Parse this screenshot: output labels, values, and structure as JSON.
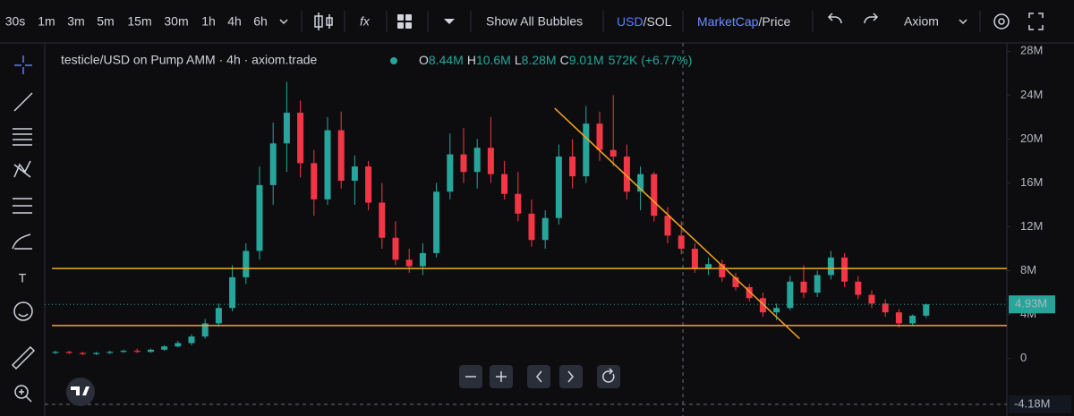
{
  "toolbar": {
    "intervals": [
      "30s",
      "1m",
      "3m",
      "5m",
      "15m",
      "30m",
      "1h",
      "4h",
      "6h"
    ],
    "active_interval": "4h",
    "bubbles": "Show All Bubbles",
    "currency": "USD",
    "currency_alt": "/SOL",
    "mode": "MarketCap",
    "mode_alt": "/Price",
    "account": "Axiom"
  },
  "chart_data": {
    "type": "candlestick",
    "title": "testicle/USD on Pump AMM · 4h · axiom.trade",
    "legend": {
      "o_label": "O",
      "o": "8.44M",
      "h_label": "H",
      "h": "10.6M",
      "l_label": "L",
      "l": "8.28M",
      "c_label": "C",
      "c": "9.01M",
      "change": "572K (+6.77%)"
    },
    "up_color": "#26a69a",
    "down_color": "#f23645",
    "ylim": [
      -5,
      29
    ],
    "yticks": [
      {
        "value": 0,
        "label": "0"
      },
      {
        "value": 4,
        "label": "4M"
      },
      {
        "value": 8,
        "label": "8M"
      },
      {
        "value": 12,
        "label": "12M"
      },
      {
        "value": 16,
        "label": "16M"
      },
      {
        "value": 20,
        "label": "20M"
      },
      {
        "value": 24,
        "label": "24M"
      },
      {
        "value": 28,
        "label": "28M"
      }
    ],
    "last_price": {
      "value": 4.93,
      "label": "4.93M"
    },
    "crosshair": {
      "value": -4.18,
      "label": "-4.18M"
    },
    "hlines": [
      {
        "value": 8.2,
        "color": "#f5a623"
      },
      {
        "value": 3.0,
        "color": "#f5a623"
      }
    ],
    "trendline": {
      "x": [
        36.7,
        54.7
      ],
      "y": [
        22.8,
        1.8
      ],
      "color": "#f5a623"
    },
    "candles": [
      [
        0.5,
        0.7,
        0.4,
        0.6
      ],
      [
        0.6,
        0.7,
        0.4,
        0.5
      ],
      [
        0.5,
        0.6,
        0.3,
        0.4
      ],
      [
        0.4,
        0.6,
        0.3,
        0.5
      ],
      [
        0.5,
        0.7,
        0.4,
        0.6
      ],
      [
        0.6,
        0.8,
        0.5,
        0.7
      ],
      [
        0.7,
        0.9,
        0.5,
        0.6
      ],
      [
        0.6,
        0.9,
        0.5,
        0.8
      ],
      [
        0.8,
        1.2,
        0.7,
        1.1
      ],
      [
        1.1,
        1.6,
        1.0,
        1.4
      ],
      [
        1.4,
        2.2,
        1.2,
        2.0
      ],
      [
        2.0,
        3.6,
        1.8,
        3.2
      ],
      [
        3.2,
        5.0,
        2.9,
        4.6
      ],
      [
        4.6,
        8.5,
        4.3,
        7.4
      ],
      [
        7.4,
        10.5,
        6.8,
        9.8
      ],
      [
        9.8,
        17.5,
        9.0,
        15.8
      ],
      [
        15.8,
        21.5,
        14.0,
        19.6
      ],
      [
        19.6,
        25.2,
        17.0,
        22.4
      ],
      [
        22.4,
        23.5,
        16.5,
        17.8
      ],
      [
        17.8,
        19.0,
        13.0,
        14.5
      ],
      [
        14.5,
        22.0,
        14.0,
        20.8
      ],
      [
        20.8,
        22.5,
        15.5,
        16.2
      ],
      [
        16.2,
        18.5,
        14.0,
        17.5
      ],
      [
        17.5,
        18.0,
        13.5,
        14.2
      ],
      [
        14.2,
        16.0,
        10.0,
        11.0
      ],
      [
        11.0,
        12.5,
        8.5,
        9.0
      ],
      [
        9.0,
        10.0,
        7.8,
        8.4
      ],
      [
        8.4,
        10.5,
        7.6,
        9.6
      ],
      [
        9.6,
        16.0,
        9.2,
        15.2
      ],
      [
        15.2,
        20.5,
        14.5,
        18.6
      ],
      [
        18.6,
        21.0,
        16.0,
        17.0
      ],
      [
        17.0,
        20.0,
        15.5,
        19.2
      ],
      [
        19.2,
        22.0,
        16.0,
        16.8
      ],
      [
        16.8,
        18.0,
        14.5,
        15.0
      ],
      [
        15.0,
        17.0,
        12.5,
        13.2
      ],
      [
        13.2,
        14.5,
        10.2,
        10.8
      ],
      [
        10.8,
        13.5,
        10.0,
        12.8
      ],
      [
        12.8,
        19.5,
        12.2,
        18.4
      ],
      [
        18.4,
        20.0,
        15.5,
        16.6
      ],
      [
        16.6,
        23.0,
        16.0,
        21.4
      ],
      [
        21.4,
        22.5,
        18.0,
        19.0
      ],
      [
        19.0,
        24.0,
        17.5,
        18.4
      ],
      [
        18.4,
        19.5,
        14.5,
        15.2
      ],
      [
        15.2,
        17.5,
        13.5,
        16.8
      ],
      [
        16.8,
        17.0,
        12.5,
        13.0
      ],
      [
        13.0,
        13.8,
        10.5,
        11.2
      ],
      [
        11.2,
        12.5,
        9.5,
        10.0
      ],
      [
        10.0,
        10.5,
        7.8,
        8.2
      ],
      [
        8.2,
        9.2,
        7.6,
        8.6
      ],
      [
        8.6,
        9.0,
        7.0,
        7.4
      ],
      [
        7.4,
        7.8,
        6.2,
        6.5
      ],
      [
        6.5,
        6.8,
        5.2,
        5.5
      ],
      [
        5.5,
        6.0,
        3.8,
        4.2
      ],
      [
        4.2,
        5.0,
        3.5,
        4.6
      ],
      [
        4.6,
        7.5,
        4.4,
        7.0
      ],
      [
        7.0,
        8.5,
        5.5,
        6.0
      ],
      [
        6.0,
        8.0,
        5.6,
        7.6
      ],
      [
        7.6,
        9.8,
        7.2,
        9.2
      ],
      [
        9.2,
        9.6,
        6.5,
        7.0
      ],
      [
        7.0,
        7.5,
        5.4,
        5.8
      ],
      [
        5.8,
        6.2,
        4.6,
        5.0
      ],
      [
        5.0,
        5.4,
        3.8,
        4.2
      ],
      [
        4.2,
        4.5,
        2.8,
        3.2
      ],
      [
        3.2,
        4.0,
        3.0,
        3.9
      ],
      [
        3.9,
        5.0,
        3.7,
        4.93
      ]
    ]
  }
}
